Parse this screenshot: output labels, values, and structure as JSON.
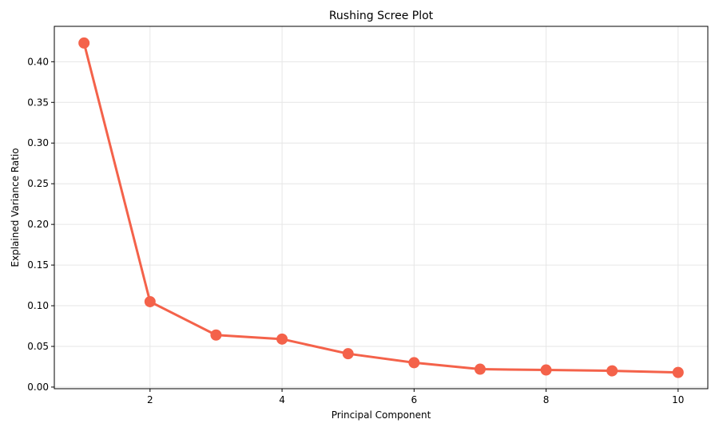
{
  "chart_data": {
    "type": "line",
    "title": "Rushing Scree Plot",
    "xlabel": "Principal Component",
    "ylabel": "Explained Variance Ratio",
    "x": [
      1,
      2,
      3,
      4,
      5,
      6,
      7,
      8,
      9,
      10
    ],
    "series": [
      {
        "values": [
          0.423,
          0.105,
          0.064,
          0.059,
          0.041,
          0.03,
          0.022,
          0.021,
          0.02,
          0.018
        ],
        "color": "#f4624a"
      }
    ],
    "xlim": [
      0.55,
      10.45
    ],
    "ylim": [
      -0.002,
      0.4435
    ],
    "xticks": [
      2,
      4,
      6,
      8,
      10
    ],
    "xtick_labels": [
      "2",
      "4",
      "6",
      "8",
      "10"
    ],
    "yticks": [
      0.0,
      0.05,
      0.1,
      0.15,
      0.2,
      0.25,
      0.3,
      0.35,
      0.4
    ],
    "ytick_labels": [
      "0.00",
      "0.05",
      "0.10",
      "0.15",
      "0.20",
      "0.25",
      "0.30",
      "0.35",
      "0.40"
    ],
    "grid": true
  }
}
